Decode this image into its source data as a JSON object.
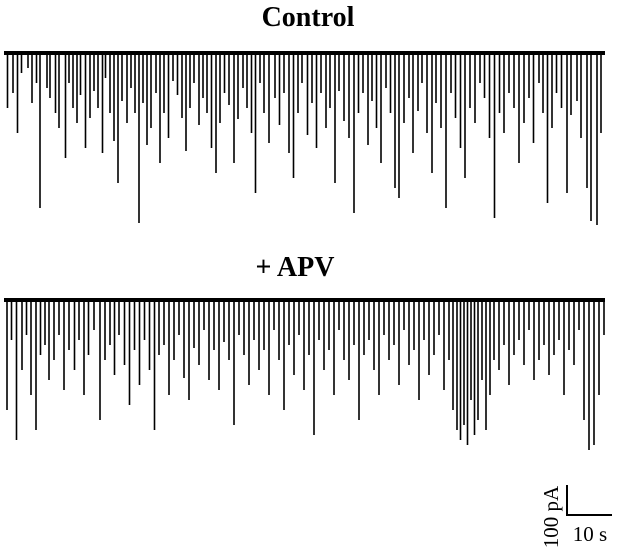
{
  "chart_data": [
    {
      "type": "line",
      "title": "Control",
      "series": [
        {
          "events": [
            [
              0.7,
              55
            ],
            [
              1.8,
              40
            ],
            [
              2.7,
              80
            ],
            [
              3.5,
              20
            ],
            [
              4.8,
              15
            ],
            [
              5.6,
              50
            ],
            [
              6.5,
              30
            ],
            [
              7.2,
              155
            ],
            [
              8.6,
              35
            ],
            [
              9.2,
              45
            ],
            [
              10.3,
              60
            ],
            [
              11.0,
              75
            ],
            [
              12.3,
              105
            ],
            [
              13.0,
              30
            ],
            [
              13.8,
              55
            ],
            [
              14.6,
              70
            ],
            [
              15.3,
              42
            ],
            [
              16.3,
              95
            ],
            [
              17.2,
              65
            ],
            [
              18.0,
              38
            ],
            [
              18.8,
              55
            ],
            [
              19.7,
              100
            ],
            [
              20.3,
              25
            ],
            [
              21.2,
              60
            ],
            [
              22.0,
              88
            ],
            [
              22.8,
              130
            ],
            [
              23.6,
              48
            ],
            [
              24.6,
              70
            ],
            [
              25.4,
              35
            ],
            [
              26.2,
              60
            ],
            [
              27.0,
              170
            ],
            [
              27.8,
              50
            ],
            [
              28.6,
              92
            ],
            [
              29.4,
              75
            ],
            [
              30.4,
              40
            ],
            [
              31.2,
              110
            ],
            [
              32.0,
              60
            ],
            [
              32.9,
              85
            ],
            [
              33.8,
              28
            ],
            [
              34.7,
              42
            ],
            [
              35.6,
              65
            ],
            [
              36.4,
              98
            ],
            [
              37.2,
              55
            ],
            [
              38.0,
              30
            ],
            [
              39.0,
              72
            ],
            [
              39.8,
              45
            ],
            [
              40.6,
              60
            ],
            [
              41.5,
              95
            ],
            [
              42.4,
              120
            ],
            [
              43.2,
              70
            ],
            [
              44.1,
              40
            ],
            [
              45.0,
              52
            ],
            [
              46.0,
              110
            ],
            [
              46.8,
              66
            ],
            [
              47.8,
              35
            ],
            [
              48.6,
              55
            ],
            [
              49.5,
              80
            ],
            [
              50.3,
              140
            ],
            [
              51.2,
              30
            ],
            [
              52.0,
              60
            ],
            [
              53.0,
              90
            ],
            [
              54.2,
              45
            ],
            [
              55.1,
              72
            ],
            [
              56.0,
              40
            ],
            [
              57.0,
              100
            ],
            [
              57.9,
              125
            ],
            [
              58.8,
              60
            ],
            [
              59.6,
              30
            ],
            [
              60.7,
              82
            ],
            [
              61.6,
              50
            ],
            [
              62.5,
              95
            ],
            [
              63.4,
              40
            ],
            [
              64.4,
              75
            ],
            [
              65.2,
              55
            ],
            [
              66.2,
              130
            ],
            [
              67.0,
              38
            ],
            [
              68.0,
              68
            ],
            [
              69.0,
              85
            ],
            [
              70.0,
              160
            ],
            [
              70.9,
              60
            ],
            [
              71.8,
              40
            ],
            [
              72.8,
              92
            ],
            [
              73.6,
              48
            ],
            [
              74.5,
              75
            ],
            [
              75.4,
              110
            ],
            [
              76.4,
              35
            ],
            [
              77.3,
              60
            ],
            [
              78.2,
              135
            ],
            [
              79.0,
              145
            ],
            [
              80.0,
              70
            ],
            [
              81.0,
              45
            ],
            [
              81.8,
              100
            ],
            [
              82.8,
              58
            ],
            [
              83.6,
              30
            ],
            [
              84.6,
              80
            ],
            [
              85.6,
              120
            ],
            [
              86.4,
              50
            ],
            [
              87.4,
              75
            ],
            [
              88.4,
              155
            ],
            [
              89.4,
              40
            ],
            [
              90.3,
              65
            ],
            [
              91.3,
              95
            ],
            [
              92.2,
              125
            ],
            [
              93.2,
              55
            ],
            [
              94.2,
              70
            ],
            [
              95.2,
              30
            ],
            [
              96.1,
              45
            ],
            [
              97.1,
              85
            ],
            [
              98.1,
              165
            ],
            [
              99.1,
              60
            ],
            [
              100.0,
              80
            ],
            [
              101.0,
              40
            ],
            [
              102.0,
              55
            ],
            [
              103.0,
              110
            ],
            [
              104.0,
              70
            ],
            [
              105.0,
              45
            ],
            [
              105.9,
              90
            ],
            [
              107.0,
              30
            ],
            [
              107.8,
              60
            ],
            [
              108.7,
              150
            ],
            [
              109.6,
              75
            ],
            [
              110.5,
              40
            ],
            [
              111.5,
              55
            ],
            [
              112.6,
              140
            ],
            [
              113.4,
              62
            ],
            [
              114.6,
              48
            ],
            [
              115.4,
              85
            ],
            [
              116.6,
              135
            ],
            [
              117.4,
              168
            ],
            [
              118.6,
              172
            ],
            [
              119.4,
              80
            ]
          ]
        }
      ]
    },
    {
      "type": "line",
      "title": "+ APV",
      "series": [
        {
          "events": [
            [
              0.6,
              110
            ],
            [
              1.5,
              40
            ],
            [
              2.5,
              140
            ],
            [
              3.6,
              70
            ],
            [
              4.5,
              35
            ],
            [
              5.4,
              95
            ],
            [
              6.4,
              130
            ],
            [
              7.3,
              55
            ],
            [
              8.2,
              45
            ],
            [
              9.0,
              80
            ],
            [
              10.0,
              60
            ],
            [
              11.0,
              35
            ],
            [
              12.0,
              90
            ],
            [
              13.0,
              50
            ],
            [
              14.1,
              70
            ],
            [
              15.0,
              40
            ],
            [
              16.0,
              95
            ],
            [
              16.9,
              55
            ],
            [
              18.0,
              30
            ],
            [
              19.2,
              120
            ],
            [
              20.2,
              60
            ],
            [
              21.2,
              45
            ],
            [
              22.1,
              75
            ],
            [
              23.0,
              35
            ],
            [
              24.1,
              65
            ],
            [
              25.1,
              105
            ],
            [
              26.1,
              50
            ],
            [
              27.1,
              85
            ],
            [
              28.1,
              40
            ],
            [
              29.1,
              70
            ],
            [
              30.1,
              130
            ],
            [
              31.0,
              55
            ],
            [
              32.0,
              45
            ],
            [
              33.0,
              95
            ],
            [
              34.0,
              60
            ],
            [
              35.0,
              35
            ],
            [
              36.0,
              78
            ],
            [
              37.0,
              100
            ],
            [
              38.0,
              48
            ],
            [
              39.0,
              65
            ],
            [
              40.0,
              30
            ],
            [
              41.0,
              80
            ],
            [
              42.0,
              50
            ],
            [
              43.0,
              90
            ],
            [
              44.0,
              42
            ],
            [
              45.0,
              60
            ],
            [
              46.0,
              125
            ],
            [
              47.0,
              35
            ],
            [
              48.0,
              55
            ],
            [
              49.0,
              85
            ],
            [
              50.0,
              40
            ],
            [
              51.0,
              70
            ],
            [
              52.0,
              50
            ],
            [
              53.0,
              95
            ],
            [
              54.0,
              30
            ],
            [
              55.0,
              60
            ],
            [
              56.0,
              110
            ],
            [
              57.0,
              45
            ],
            [
              58.0,
              75
            ],
            [
              59.0,
              35
            ],
            [
              60.0,
              90
            ],
            [
              61.0,
              55
            ],
            [
              62.0,
              135
            ],
            [
              63.0,
              40
            ],
            [
              64.0,
              70
            ],
            [
              65.0,
              50
            ],
            [
              66.0,
              95
            ],
            [
              67.0,
              30
            ],
            [
              68.0,
              60
            ],
            [
              69.0,
              80
            ],
            [
              70.0,
              45
            ],
            [
              71.0,
              120
            ],
            [
              72.0,
              55
            ],
            [
              73.0,
              40
            ],
            [
              74.0,
              70
            ],
            [
              75.0,
              95
            ],
            [
              76.0,
              35
            ],
            [
              77.0,
              60
            ],
            [
              78.0,
              45
            ],
            [
              79.0,
              85
            ],
            [
              80.0,
              30
            ],
            [
              81.0,
              65
            ],
            [
              82.0,
              50
            ],
            [
              83.0,
              100
            ],
            [
              84.0,
              40
            ],
            [
              85.0,
              75
            ],
            [
              86.0,
              55
            ],
            [
              87.0,
              35
            ],
            [
              88.0,
              90
            ],
            [
              89.0,
              60
            ],
            [
              89.8,
              110
            ],
            [
              90.6,
              130
            ],
            [
              91.3,
              140
            ],
            [
              92.0,
              125
            ],
            [
              92.7,
              145
            ],
            [
              93.4,
              100
            ],
            [
              94.1,
              135
            ],
            [
              94.8,
              120
            ],
            [
              95.6,
              80
            ],
            [
              96.4,
              130
            ],
            [
              97.2,
              95
            ],
            [
              98.0,
              60
            ],
            [
              99.0,
              70
            ],
            [
              100.0,
              45
            ],
            [
              101.0,
              85
            ],
            [
              102.0,
              55
            ],
            [
              103.0,
              40
            ],
            [
              104.0,
              65
            ],
            [
              105.0,
              30
            ],
            [
              106.0,
              80
            ],
            [
              107.0,
              60
            ],
            [
              108.0,
              45
            ],
            [
              109.0,
              75
            ],
            [
              110.0,
              55
            ],
            [
              111.0,
              40
            ],
            [
              112.0,
              95
            ],
            [
              113.0,
              50
            ],
            [
              114.0,
              65
            ],
            [
              115.0,
              30
            ],
            [
              116.0,
              120
            ],
            [
              117.0,
              150
            ],
            [
              118.0,
              145
            ],
            [
              119.0,
              95
            ],
            [
              120.0,
              35
            ]
          ]
        }
      ]
    }
  ],
  "scale_bar": {
    "current_label": "100 pA",
    "time_label": "10 s",
    "current_value_pa": 100,
    "time_value_s": 10
  }
}
